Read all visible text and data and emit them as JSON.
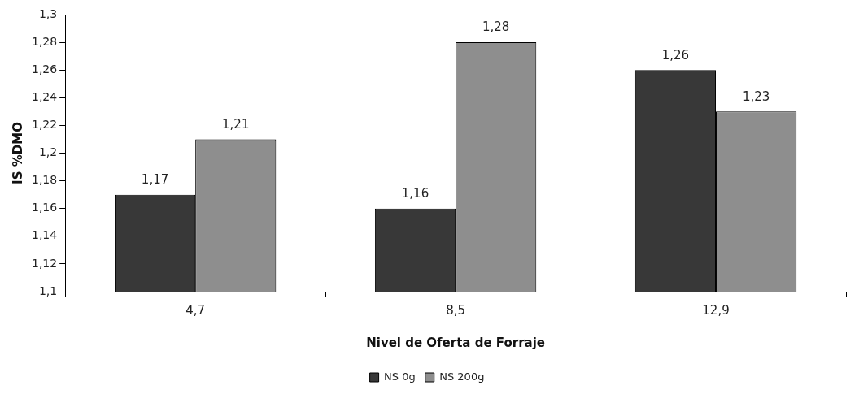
{
  "chart_data": {
    "type": "bar",
    "xlabel": "Nivel de Oferta de Forraje",
    "ylabel": "IS %DMO",
    "categories": [
      "4,7",
      "8,5",
      "12,9"
    ],
    "series": [
      {
        "name": "NS 0g",
        "color": "#383838",
        "values": [
          1.17,
          1.16,
          1.26
        ],
        "value_labels": [
          "1,17",
          "1,16",
          "1,26"
        ]
      },
      {
        "name": "NS 200g",
        "color": "#8e8e8e",
        "values": [
          1.21,
          1.28,
          1.23
        ],
        "value_labels": [
          "1,21",
          "1,28",
          "1,23"
        ]
      }
    ],
    "ylim": [
      1.1,
      1.3
    ],
    "yticks": [
      {
        "value": 1.1,
        "label": "1,1"
      },
      {
        "value": 1.12,
        "label": "1,12"
      },
      {
        "value": 1.14,
        "label": "1,14"
      },
      {
        "value": 1.16,
        "label": "1,16"
      },
      {
        "value": 1.18,
        "label": "1,18"
      },
      {
        "value": 1.2,
        "label": "1,2"
      },
      {
        "value": 1.22,
        "label": "1,22"
      },
      {
        "value": 1.24,
        "label": "1,24"
      },
      {
        "value": 1.26,
        "label": "1,26"
      },
      {
        "value": 1.28,
        "label": "1,28"
      },
      {
        "value": 1.3,
        "label": "1,3"
      }
    ],
    "grid": false,
    "legend": "bottom"
  }
}
